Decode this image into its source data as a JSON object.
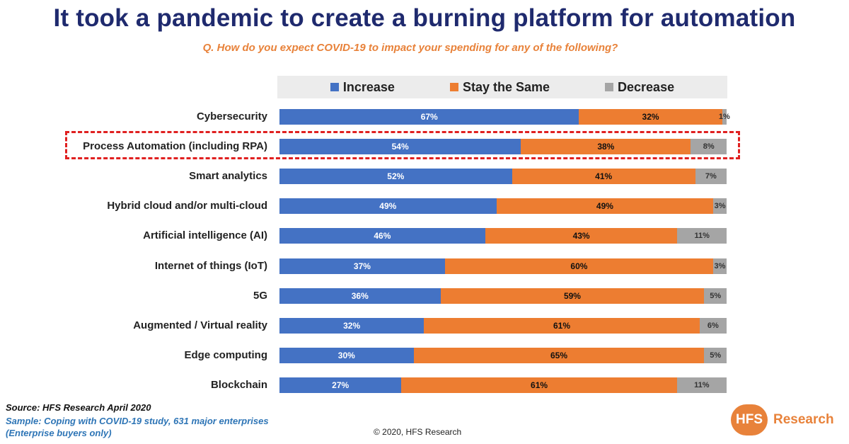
{
  "title": "It took a pandemic to create a burning platform for automation",
  "subtitle": "Q. How do you expect COVID-19 to impact your spending for any of the following?",
  "colors": {
    "increase": "#4472c4",
    "same": "#ed7d31",
    "decrease": "#a5a5a5",
    "highlight": "#e02020"
  },
  "chart_data": {
    "type": "bar",
    "orientation": "horizontal",
    "stacked": true,
    "legend_position": "top",
    "categories": [
      "Cybersecurity",
      "Process Automation (including RPA)",
      "Smart analytics",
      "Hybrid cloud and/or multi-cloud",
      "Artificial intelligence (AI)",
      "Internet of things (IoT)",
      "5G",
      "Augmented / Virtual reality",
      "Edge computing",
      "Blockchain"
    ],
    "series": [
      {
        "name": "Increase",
        "values": [
          67,
          54,
          52,
          49,
          46,
          37,
          36,
          32,
          30,
          27
        ]
      },
      {
        "name": "Stay the Same",
        "values": [
          32,
          38,
          41,
          49,
          43,
          60,
          59,
          61,
          65,
          61
        ]
      },
      {
        "name": "Decrease",
        "values": [
          1,
          8,
          7,
          3,
          11,
          3,
          5,
          6,
          5,
          11
        ]
      }
    ],
    "unit": "%",
    "highlighted_category": "Process Automation (including RPA)"
  },
  "footer": {
    "source": "Source: HFS Research April 2020",
    "sample_line1": "Sample: Coping with COVID-19 study, 631 major enterprises",
    "sample_line2": "(Enterprise buyers only)",
    "copyright": "© 2020, HFS Research",
    "logo_mark": "HFS",
    "logo_text": "Research"
  }
}
